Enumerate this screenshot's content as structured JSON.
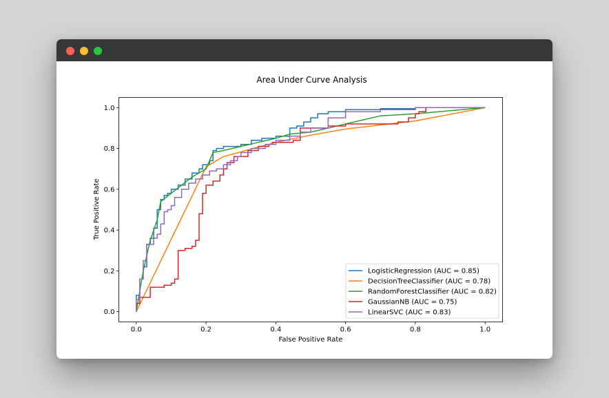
{
  "window": {
    "buttons": [
      "close",
      "minimize",
      "maximize"
    ],
    "colors": {
      "close": "#fe5f57",
      "minimize": "#febc2e",
      "maximize": "#28c840",
      "titlebar": "#363739"
    }
  },
  "chart_data": {
    "type": "line",
    "title": "Area Under Curve Analysis",
    "xlabel": "False Positive Rate",
    "ylabel": "True Positive Rate",
    "xlim": [
      -0.05,
      1.05
    ],
    "ylim": [
      -0.05,
      1.05
    ],
    "xticks": [
      "0.0",
      "0.2",
      "0.4",
      "0.6",
      "0.8",
      "1.0"
    ],
    "yticks": [
      "0.0",
      "0.2",
      "0.4",
      "0.6",
      "0.8",
      "1.0"
    ],
    "grid": false,
    "legend_position": "lower-right",
    "series": [
      {
        "name": "LogisticRegression (AUC = 0.85)",
        "color": "#1f77b4",
        "step": true,
        "x": [
          0,
          0,
          0.01,
          0.01,
          0.02,
          0.02,
          0.03,
          0.03,
          0.04,
          0.04,
          0.05,
          0.05,
          0.06,
          0.06,
          0.07,
          0.07,
          0.08,
          0.08,
          0.09,
          0.09,
          0.1,
          0.1,
          0.12,
          0.12,
          0.14,
          0.14,
          0.16,
          0.16,
          0.18,
          0.18,
          0.19,
          0.19,
          0.21,
          0.21,
          0.22,
          0.22,
          0.23,
          0.23,
          0.25,
          0.25,
          0.3,
          0.3,
          0.33,
          0.33,
          0.36,
          0.36,
          0.4,
          0.4,
          0.44,
          0.44,
          0.46,
          0.46,
          0.48,
          0.48,
          0.5,
          0.5,
          0.52,
          0.52,
          0.55,
          0.55,
          0.6,
          0.6,
          0.7,
          0.7,
          0.8,
          0.8,
          1.0
        ],
        "y": [
          0,
          0.08,
          0.08,
          0.16,
          0.16,
          0.22,
          0.22,
          0.33,
          0.33,
          0.36,
          0.36,
          0.41,
          0.41,
          0.5,
          0.5,
          0.55,
          0.55,
          0.57,
          0.57,
          0.58,
          0.58,
          0.6,
          0.6,
          0.62,
          0.62,
          0.65,
          0.65,
          0.68,
          0.68,
          0.7,
          0.7,
          0.72,
          0.72,
          0.74,
          0.74,
          0.79,
          0.79,
          0.8,
          0.8,
          0.81,
          0.81,
          0.82,
          0.82,
          0.84,
          0.84,
          0.85,
          0.85,
          0.86,
          0.86,
          0.9,
          0.9,
          0.91,
          0.91,
          0.93,
          0.93,
          0.95,
          0.95,
          0.97,
          0.97,
          0.98,
          0.98,
          0.99,
          0.99,
          0.995,
          0.995,
          1.0,
          1.0
        ]
      },
      {
        "name": "DecisionTreeClassifier (AUC = 0.78)",
        "color": "#ff7f0e",
        "step": false,
        "x": [
          0,
          0.2,
          0.25,
          0.4,
          0.5,
          0.6,
          0.8,
          1.0
        ],
        "y": [
          0,
          0.71,
          0.76,
          0.83,
          0.865,
          0.895,
          0.935,
          1.0
        ]
      },
      {
        "name": "RandomForestClassifier (AUC = 0.82)",
        "color": "#2ca02c",
        "step": false,
        "x": [
          0,
          0.02,
          0.04,
          0.06,
          0.07,
          0.1,
          0.13,
          0.16,
          0.2,
          0.22,
          0.25,
          0.3,
          0.35,
          0.4,
          0.44,
          0.5,
          0.55,
          0.6,
          0.65,
          0.7,
          0.8,
          0.9,
          1.0
        ],
        "y": [
          0,
          0.2,
          0.35,
          0.45,
          0.54,
          0.58,
          0.62,
          0.66,
          0.7,
          0.78,
          0.79,
          0.81,
          0.83,
          0.85,
          0.87,
          0.88,
          0.9,
          0.92,
          0.94,
          0.96,
          0.97,
          0.985,
          1.0
        ]
      },
      {
        "name": "GaussianNB (AUC = 0.75)",
        "color": "#d62728",
        "step": true,
        "x": [
          0,
          0,
          0.01,
          0.01,
          0.04,
          0.04,
          0.08,
          0.08,
          0.1,
          0.1,
          0.11,
          0.11,
          0.12,
          0.12,
          0.14,
          0.14,
          0.16,
          0.16,
          0.17,
          0.17,
          0.18,
          0.18,
          0.19,
          0.19,
          0.2,
          0.2,
          0.22,
          0.22,
          0.24,
          0.24,
          0.25,
          0.25,
          0.26,
          0.26,
          0.28,
          0.28,
          0.32,
          0.32,
          0.35,
          0.35,
          0.38,
          0.38,
          0.39,
          0.39,
          0.45,
          0.45,
          0.47,
          0.47,
          0.55,
          0.55,
          0.6,
          0.6,
          0.75,
          0.75,
          0.78,
          0.78,
          0.8,
          0.8,
          0.81,
          0.81,
          0.83,
          0.83,
          1.0
        ],
        "y": [
          0,
          0.04,
          0.04,
          0.07,
          0.07,
          0.12,
          0.12,
          0.13,
          0.13,
          0.14,
          0.14,
          0.16,
          0.16,
          0.3,
          0.3,
          0.31,
          0.31,
          0.32,
          0.32,
          0.35,
          0.35,
          0.48,
          0.48,
          0.58,
          0.58,
          0.62,
          0.62,
          0.64,
          0.64,
          0.67,
          0.67,
          0.7,
          0.7,
          0.73,
          0.73,
          0.76,
          0.76,
          0.79,
          0.79,
          0.81,
          0.81,
          0.82,
          0.82,
          0.83,
          0.83,
          0.84,
          0.84,
          0.9,
          0.9,
          0.91,
          0.91,
          0.92,
          0.92,
          0.93,
          0.93,
          0.95,
          0.95,
          0.97,
          0.97,
          0.98,
          0.98,
          1.0,
          1.0
        ]
      },
      {
        "name": "LinearSVC (AUC = 0.83)",
        "color": "#9467bd",
        "step": true,
        "x": [
          0,
          0,
          0.01,
          0.01,
          0.02,
          0.02,
          0.03,
          0.03,
          0.05,
          0.05,
          0.06,
          0.06,
          0.07,
          0.07,
          0.08,
          0.08,
          0.09,
          0.09,
          0.1,
          0.1,
          0.11,
          0.11,
          0.13,
          0.13,
          0.15,
          0.15,
          0.17,
          0.17,
          0.19,
          0.19,
          0.21,
          0.21,
          0.23,
          0.23,
          0.25,
          0.25,
          0.27,
          0.27,
          0.29,
          0.29,
          0.3,
          0.3,
          0.33,
          0.33,
          0.37,
          0.37,
          0.4,
          0.4,
          0.44,
          0.44,
          0.47,
          0.47,
          0.5,
          0.5,
          0.55,
          0.55,
          0.6,
          0.6,
          0.7,
          0.7,
          0.8,
          0.8,
          1.0
        ],
        "y": [
          0,
          0.06,
          0.06,
          0.16,
          0.16,
          0.25,
          0.25,
          0.33,
          0.33,
          0.36,
          0.36,
          0.38,
          0.38,
          0.43,
          0.43,
          0.49,
          0.49,
          0.5,
          0.5,
          0.52,
          0.52,
          0.56,
          0.56,
          0.6,
          0.6,
          0.63,
          0.63,
          0.65,
          0.65,
          0.67,
          0.67,
          0.69,
          0.69,
          0.7,
          0.7,
          0.72,
          0.72,
          0.74,
          0.74,
          0.76,
          0.76,
          0.78,
          0.78,
          0.8,
          0.8,
          0.82,
          0.82,
          0.84,
          0.84,
          0.86,
          0.86,
          0.88,
          0.88,
          0.9,
          0.9,
          0.95,
          0.95,
          0.98,
          0.98,
          0.99,
          0.99,
          1.0,
          1.0
        ]
      }
    ]
  }
}
